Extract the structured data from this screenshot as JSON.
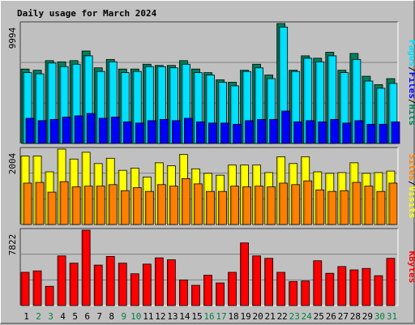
{
  "chart_data": {
    "type": "bar",
    "title": "Daily usage for March 2024",
    "colors": {
      "title": "#0000ff",
      "text": "#000000",
      "weekend_day": "#008040",
      "hits": "#00805c",
      "files": "#00e0ff",
      "pages": "#0000ff",
      "visits": "#ffff00",
      "sites": "#ff8000",
      "kbytes": "#ff0000",
      "panel_bg": "#c0c0c0",
      "grid": "#808080"
    },
    "categories": [
      "1",
      "2",
      "3",
      "4",
      "5",
      "6",
      "7",
      "8",
      "9",
      "10",
      "11",
      "12",
      "13",
      "14",
      "15",
      "16",
      "17",
      "18",
      "19",
      "20",
      "21",
      "22",
      "23",
      "24",
      "25",
      "26",
      "27",
      "28",
      "29",
      "30",
      "31"
    ],
    "weekend_days": [
      "2",
      "3",
      "9",
      "10",
      "16",
      "17",
      "23",
      "24",
      "30",
      "31"
    ],
    "panels": [
      {
        "name": "usage",
        "max_label": "9994",
        "ylim": [
          0,
          9994
        ],
        "right_labels": [
          "Pages",
          "Files",
          "Hits"
        ],
        "series": [
          {
            "name": "Hits",
            "values": [
              6200,
              6100,
              6900,
              6800,
              6900,
              7700,
              6300,
              7000,
              6200,
              6200,
              6600,
              6500,
              6500,
              6900,
              6200,
              5900,
              5300,
              5100,
              6100,
              6600,
              5700,
              9994,
              6100,
              7300,
              7100,
              7600,
              6100,
              7500,
              5600,
              4900,
              5400
            ]
          },
          {
            "name": "Files",
            "values": [
              5900,
              5800,
              6700,
              6400,
              6600,
              7300,
              6000,
              6800,
              5900,
              6000,
              6400,
              6400,
              6300,
              6600,
              5900,
              5700,
              5100,
              4800,
              6000,
              6300,
              5400,
              9700,
              6000,
              7100,
              6800,
              7300,
              5900,
              7000,
              5200,
              4600,
              5000
            ]
          },
          {
            "name": "Pages",
            "values": [
              2100,
              1900,
              2000,
              2200,
              2300,
              2500,
              2100,
              2200,
              1800,
              1700,
              1900,
              2000,
              1900,
              2100,
              1800,
              1700,
              1700,
              1600,
              1900,
              2000,
              2000,
              2700,
              1800,
              1900,
              1800,
              2000,
              1700,
              1900,
              1600,
              1600,
              1800
            ]
          }
        ]
      },
      {
        "name": "visits",
        "max_label": "2004",
        "ylim": [
          0,
          2004
        ],
        "right_labels": [
          "Sites",
          "Visits"
        ],
        "series": [
          {
            "name": "Visits",
            "values": [
              1820,
              1820,
              1400,
              2004,
              1740,
              1920,
              1620,
              1760,
              1440,
              1500,
              1260,
              1640,
              1560,
              1860,
              1480,
              1360,
              1310,
              1580,
              1580,
              1580,
              1380,
              1800,
              1620,
              1800,
              1400,
              1360,
              1380,
              1640,
              1360,
              1380,
              1420
            ]
          },
          {
            "name": "Sites",
            "values": [
              1100,
              1120,
              860,
              1140,
              1000,
              1020,
              1020,
              1060,
              900,
              980,
              880,
              1060,
              1020,
              1220,
              1080,
              880,
              880,
              1020,
              1000,
              1020,
              1000,
              1100,
              1060,
              1160,
              920,
              880,
              900,
              1120,
              1020,
              880,
              1100
            ]
          }
        ]
      },
      {
        "name": "kbytes",
        "max_label": "7822",
        "ylim": [
          0,
          7822
        ],
        "right_labels": [
          "KBytes"
        ],
        "series": [
          {
            "name": "KBytes",
            "values": [
              3450,
              3600,
              2000,
              5150,
              4400,
              7822,
              4200,
              5100,
              4400,
              3300,
              4300,
              4950,
              4750,
              2650,
              2100,
              3150,
              2350,
              3450,
              6500,
              5150,
              4900,
              3450,
              2500,
              2550,
              4650,
              3350,
              4050,
              3700,
              3850,
              3100,
              4900
            ]
          }
        ]
      }
    ]
  }
}
